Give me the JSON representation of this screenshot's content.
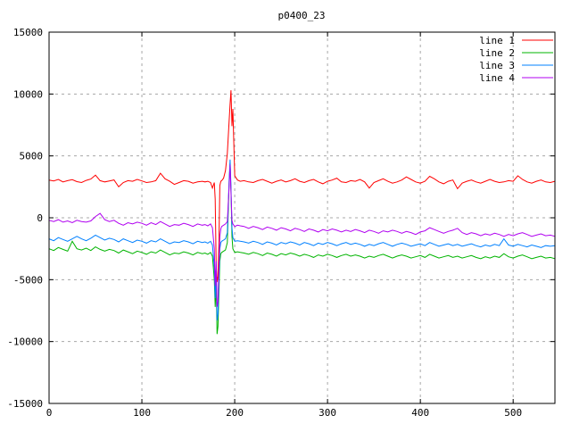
{
  "title": "p0400_23",
  "chart_data": {
    "type": "line",
    "title": "p0400_23",
    "xlabel": "",
    "ylabel": "",
    "xlim": [
      0,
      545
    ],
    "ylim": [
      -15000,
      15000
    ],
    "x_ticks": [
      0,
      100,
      200,
      300,
      400,
      500
    ],
    "y_ticks": [
      -15000,
      -10000,
      -5000,
      0,
      5000,
      10000,
      15000
    ],
    "grid": true,
    "grid_color": "#a8a8a8",
    "border_color": "#000000",
    "background": "#ffffff",
    "legend_position": "top-right-inside",
    "x": [
      0,
      5,
      10,
      15,
      20,
      25,
      30,
      35,
      40,
      45,
      50,
      55,
      60,
      65,
      70,
      75,
      80,
      85,
      90,
      95,
      100,
      105,
      110,
      115,
      120,
      125,
      130,
      135,
      140,
      145,
      150,
      155,
      160,
      165,
      168,
      171,
      174,
      176,
      178,
      179,
      180,
      181,
      182,
      183,
      184,
      185,
      186,
      188,
      190,
      192,
      194,
      195,
      196,
      197,
      198,
      200,
      203,
      206,
      210,
      215,
      220,
      225,
      230,
      235,
      240,
      245,
      250,
      255,
      260,
      265,
      270,
      275,
      280,
      285,
      290,
      295,
      300,
      305,
      310,
      315,
      320,
      325,
      330,
      335,
      340,
      345,
      350,
      355,
      360,
      365,
      370,
      375,
      380,
      385,
      390,
      395,
      400,
      405,
      410,
      415,
      420,
      425,
      430,
      435,
      440,
      445,
      450,
      455,
      460,
      465,
      470,
      475,
      480,
      485,
      490,
      495,
      500,
      505,
      510,
      515,
      520,
      525,
      530,
      535,
      540,
      545
    ],
    "series": [
      {
        "name": "line 1",
        "color": "#ff0000",
        "values": [
          3050,
          2980,
          3100,
          2900,
          3000,
          3080,
          2920,
          2850,
          3020,
          3130,
          3450,
          3000,
          2900,
          2980,
          3060,
          2500,
          2850,
          3000,
          2950,
          3100,
          2980,
          2850,
          2900,
          3000,
          3600,
          3150,
          2950,
          2700,
          2850,
          3000,
          2950,
          2800,
          2900,
          2950,
          2900,
          2950,
          2850,
          2400,
          2850,
          1500,
          -3800,
          -5200,
          -4700,
          -2000,
          2600,
          2950,
          3000,
          3200,
          3800,
          5200,
          7800,
          9200,
          10300,
          7400,
          8800,
          3400,
          3050,
          2950,
          3000,
          2900,
          2850,
          3000,
          3100,
          2950,
          2800,
          2950,
          3050,
          2900,
          3000,
          3150,
          2950,
          2850,
          3000,
          3100,
          2900,
          2750,
          2950,
          3050,
          3200,
          2900,
          2850,
          3000,
          2950,
          3100,
          2900,
          2400,
          2850,
          3000,
          3150,
          2950,
          2800,
          2900,
          3050,
          3300,
          3100,
          2900,
          2800,
          2950,
          3350,
          3150,
          2900,
          2750,
          2950,
          3050,
          2350,
          2800,
          2950,
          3050,
          2900,
          2800,
          2950,
          3100,
          2950,
          2850,
          2900,
          3000,
          2950,
          3400,
          3100,
          2900,
          2800,
          2950,
          3050,
          2900,
          2850,
          2950
        ]
      },
      {
        "name": "line 2",
        "color": "#00b400",
        "values": [
          -2500,
          -2650,
          -2400,
          -2550,
          -2700,
          -1900,
          -2500,
          -2600,
          -2450,
          -2650,
          -2350,
          -2550,
          -2700,
          -2550,
          -2650,
          -2850,
          -2600,
          -2750,
          -2900,
          -2700,
          -2800,
          -2950,
          -2750,
          -2850,
          -2600,
          -2800,
          -3000,
          -2850,
          -2900,
          -2750,
          -2850,
          -3000,
          -2800,
          -2900,
          -2850,
          -2950,
          -2800,
          -3100,
          -5000,
          -7200,
          -5500,
          -9400,
          -8800,
          -6000,
          -3500,
          -2900,
          -2800,
          -2700,
          -2600,
          -2000,
          2800,
          4400,
          2200,
          -1500,
          -2500,
          -2800,
          -2750,
          -2800,
          -2850,
          -2950,
          -2800,
          -2900,
          -3050,
          -2850,
          -2950,
          -3100,
          -2900,
          -3000,
          -2850,
          -2950,
          -3100,
          -2950,
          -3050,
          -3200,
          -3000,
          -3100,
          -2950,
          -3050,
          -3200,
          -3050,
          -2950,
          -3100,
          -3000,
          -3100,
          -3250,
          -3100,
          -3200,
          -3050,
          -2950,
          -3100,
          -3250,
          -3100,
          -3000,
          -3100,
          -3250,
          -3150,
          -3050,
          -3200,
          -2950,
          -3100,
          -3250,
          -3150,
          -3050,
          -3200,
          -3100,
          -3250,
          -3150,
          -3050,
          -3200,
          -3300,
          -3150,
          -3250,
          -3100,
          -3200,
          -2900,
          -3150,
          -3250,
          -3100,
          -3000,
          -3150,
          -3300,
          -3200,
          -3100,
          -3250,
          -3200,
          -3300
        ]
      },
      {
        "name": "line 3",
        "color": "#0080ff",
        "values": [
          -1700,
          -1850,
          -1600,
          -1750,
          -1900,
          -1700,
          -1500,
          -1700,
          -1850,
          -1650,
          -1400,
          -1600,
          -1800,
          -1650,
          -1750,
          -1950,
          -1700,
          -1850,
          -2000,
          -1800,
          -1900,
          -2050,
          -1850,
          -1950,
          -1700,
          -1900,
          -2100,
          -1950,
          -2000,
          -1850,
          -1950,
          -2100,
          -1900,
          -2000,
          -1950,
          -2050,
          -1900,
          -2200,
          -4000,
          -6500,
          -4500,
          -8300,
          -7800,
          -5000,
          -2500,
          -2000,
          -1900,
          -1800,
          -1700,
          -1200,
          3000,
          4700,
          2500,
          -800,
          -1600,
          -1900,
          -1850,
          -1900,
          -1950,
          -2050,
          -1900,
          -2000,
          -2150,
          -1950,
          -2050,
          -2200,
          -2000,
          -2100,
          -1950,
          -2050,
          -2200,
          -2000,
          -2100,
          -2250,
          -2050,
          -2150,
          -2000,
          -2100,
          -2250,
          -2100,
          -2000,
          -2150,
          -2050,
          -2150,
          -2300,
          -2150,
          -2250,
          -2100,
          -2000,
          -2150,
          -2300,
          -2150,
          -2050,
          -2150,
          -2300,
          -2200,
          -2100,
          -2250,
          -2000,
          -2150,
          -2300,
          -2200,
          -2100,
          -2250,
          -2150,
          -2300,
          -2200,
          -2100,
          -2250,
          -2350,
          -2200,
          -2300,
          -2150,
          -2250,
          -1700,
          -2200,
          -2300,
          -2150,
          -2250,
          -2350,
          -2200,
          -2300,
          -2400,
          -2250,
          -2300,
          -2250
        ]
      },
      {
        "name": "line 4",
        "color": "#b000f0",
        "values": [
          -200,
          -300,
          -150,
          -350,
          -250,
          -400,
          -200,
          -300,
          -350,
          -250,
          100,
          350,
          -150,
          -300,
          -200,
          -450,
          -600,
          -400,
          -500,
          -350,
          -450,
          -600,
          -400,
          -550,
          -300,
          -500,
          -700,
          -550,
          -600,
          -450,
          -550,
          -700,
          -500,
          -600,
          -550,
          -650,
          -500,
          -800,
          -2500,
          -5500,
          -3500,
          -7200,
          -6800,
          -4000,
          -1500,
          -900,
          -700,
          -600,
          -500,
          -300,
          2500,
          4300,
          2000,
          -200,
          -500,
          -700,
          -600,
          -650,
          -700,
          -850,
          -700,
          -800,
          -950,
          -750,
          -850,
          -1000,
          -800,
          -900,
          -1050,
          -850,
          -950,
          -1100,
          -900,
          -1000,
          -1150,
          -950,
          -1050,
          -900,
          -1000,
          -1150,
          -1000,
          -1100,
          -950,
          -1050,
          -1200,
          -1000,
          -1100,
          -1250,
          -1050,
          -1150,
          -1000,
          -1100,
          -1250,
          -1100,
          -1200,
          -1350,
          -1150,
          -1050,
          -800,
          -950,
          -1100,
          -1250,
          -1100,
          -1000,
          -850,
          -1200,
          -1350,
          -1200,
          -1300,
          -1450,
          -1300,
          -1400,
          -1250,
          -1350,
          -1500,
          -1350,
          -1450,
          -1300,
          -1200,
          -1350,
          -1500,
          -1400,
          -1300,
          -1450,
          -1400,
          -1500
        ]
      }
    ]
  }
}
